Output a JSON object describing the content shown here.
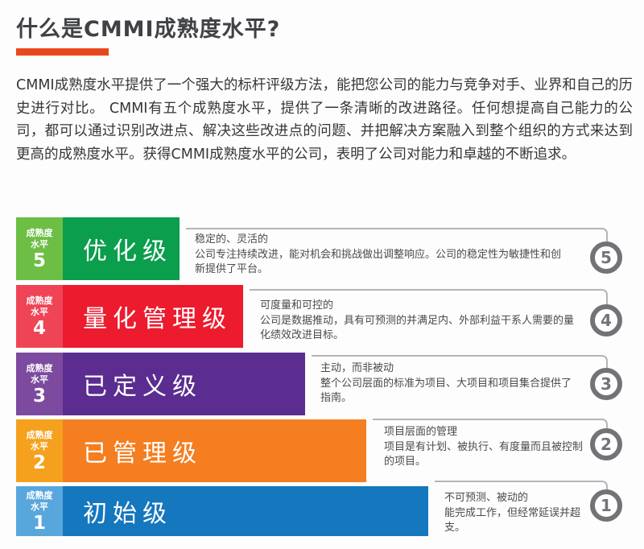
{
  "page": {
    "title": "什么是CMMI成熟度水平?",
    "intro": "CMMI成熟度水平提供了一个强大的标杆评级方法，能把您公司的能力与竞争对手、业界和自己的历史进行对比。 CMMI有五个成熟度水平，提供了一条清晰的改进路径。任何想提高自己能力的公司，都可以通过识别改进点、解决这些改进点的问题、并把解决方案融入到整个组织的方式来达到更高的成熟度水平。获得CMMI成熟度水平的公司，表明了公司对能力和卓越的不断追求。",
    "accent_color": "#E8481E",
    "title_color": "#3F4145"
  },
  "chart_data": {
    "type": "bar",
    "connector_color": "#B3B5B7",
    "circle_ring_color": "#717376",
    "levels": [
      {
        "level": "5",
        "badge_line1": "成熟度",
        "badge_line2": "水平",
        "name": "优化级",
        "desc_title": "稳定的、灵活的",
        "desc_body": "公司专注持续改进，能对机会和挑战做出调整响应。公司的稳定性为敏捷性和创新提供了平台。",
        "bar_color": "#0A9E4D",
        "badge_color": "#6CBE45"
      },
      {
        "level": "4",
        "badge_line1": "成熟度",
        "badge_line2": "水平",
        "name": "量化管理级",
        "desc_title": "可度量和可控的",
        "desc_body": "公司是数据推动，具有可预测的并满足内、外部利益干系人需要的量化绩效改进目标。",
        "bar_color": "#EC1B2E",
        "badge_color": "#EF4456"
      },
      {
        "level": "3",
        "badge_line1": "成熟度",
        "badge_line2": "水平",
        "name": "已定义级",
        "desc_title": "主动，而非被动",
        "desc_body": "整个公司层面的标准为项目、大项目和项目集合提供了指南。",
        "bar_color": "#5B2D90",
        "badge_color": "#7C4A9E"
      },
      {
        "level": "2",
        "badge_line1": "成熟度",
        "badge_line2": "水平",
        "name": "已管理级",
        "desc_title": "项目层面的管理",
        "desc_body": "项目是有计划、被执行、有度量而且被控制的项目。",
        "bar_color": "#F47E20",
        "badge_color": "#F5A11D"
      },
      {
        "level": "1",
        "badge_line1": "成熟度",
        "badge_line2": "水平",
        "name": "初始级",
        "desc_title": "不可预测、被动的",
        "desc_body": "能完成工作，但经常延误并超支。",
        "bar_color": "#1577BE",
        "badge_color": "#58A7DC"
      }
    ]
  }
}
